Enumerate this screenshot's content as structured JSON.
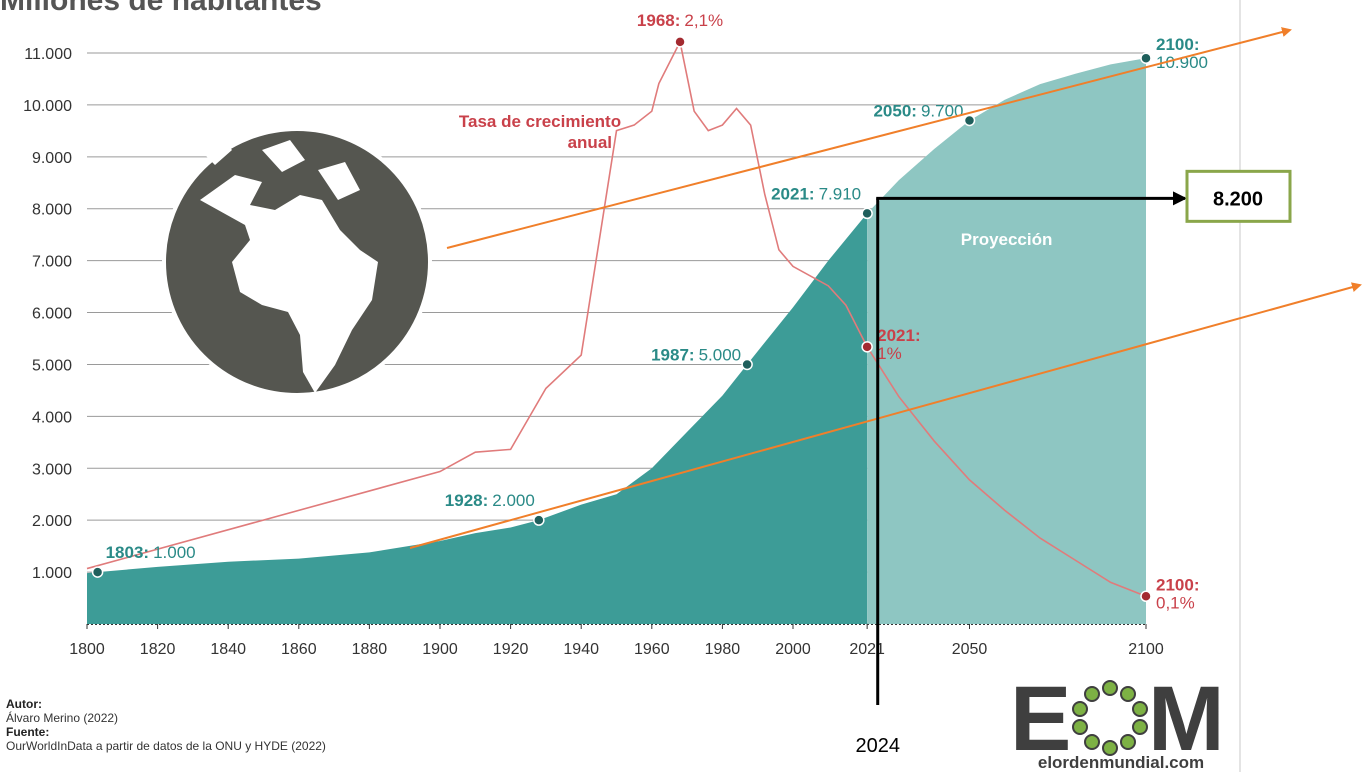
{
  "chart_data": {
    "type": "area",
    "title": "Millones de habitantes",
    "xlim": [
      1800,
      2100
    ],
    "xticks": [
      1800,
      1820,
      1840,
      1860,
      1880,
      1900,
      1920,
      1940,
      1960,
      1980,
      2000,
      2021,
      2050,
      2100
    ],
    "ylim": [
      0,
      11000
    ],
    "yticks": [
      {
        "value": 1000,
        "label": "1.000"
      },
      {
        "value": 2000,
        "label": "2.000"
      },
      {
        "value": 3000,
        "label": "3.000"
      },
      {
        "value": 4000,
        "label": "4.000"
      },
      {
        "value": 5000,
        "label": "5.000"
      },
      {
        "value": 6000,
        "label": "6.000"
      },
      {
        "value": 7000,
        "label": "7.000"
      },
      {
        "value": 8000,
        "label": "8.000"
      },
      {
        "value": 9000,
        "label": "9.000"
      },
      {
        "value": 10000,
        "label": "10.000"
      },
      {
        "value": 11000,
        "label": "11.000"
      }
    ],
    "y2lim": [
      0,
      2.06
    ],
    "grid": true,
    "series": [
      {
        "type": "area",
        "color": "#3d9c97",
        "x": [
          1800,
          1803,
          1820,
          1840,
          1860,
          1880,
          1900,
          1910,
          1920,
          1928,
          1940,
          1950,
          1960,
          1970,
          1980,
          1987,
          2000,
          2010,
          2021
        ],
        "values": [
          980,
          1000,
          1100,
          1200,
          1260,
          1380,
          1600,
          1750,
          1860,
          2000,
          2300,
          2500,
          3000,
          3700,
          4400,
          5000,
          6100,
          7000,
          7910
        ],
        "label_color": "#2a8a87",
        "highlights": [
          {
            "x": 1803,
            "y": 1000,
            "year": "1803:",
            "label": "1.000"
          },
          {
            "x": 1928,
            "y": 2000,
            "year": "1928:",
            "label": "2.000"
          },
          {
            "x": 1987,
            "y": 5000,
            "year": "1987:",
            "label": "5.000"
          },
          {
            "x": 2021,
            "y": 7910,
            "year": "2021:",
            "label": "7.910"
          }
        ]
      },
      {
        "type": "area",
        "name": "Proyección",
        "color": "#8ec6c2",
        "x": [
          2021,
          2030,
          2040,
          2050,
          2060,
          2070,
          2080,
          2090,
          2100
        ],
        "values": [
          7910,
          8550,
          9150,
          9700,
          10100,
          10400,
          10600,
          10780,
          10900
        ],
        "label_color": "#2a8a87",
        "highlights": [
          {
            "x": 2050,
            "y": 9700,
            "year": "2050:",
            "label": "9.700"
          },
          {
            "x": 2100,
            "y": 10900,
            "year": "2100:",
            "label": "10.900"
          }
        ]
      },
      {
        "type": "line",
        "name": "Tasa de crecimiento anual",
        "axis": "y2",
        "color": "#e07b7b",
        "x": [
          1800,
          1900,
          1910,
          1920,
          1930,
          1940,
          1950,
          1955,
          1960,
          1962,
          1968,
          1972,
          1976,
          1980,
          1984,
          1988,
          1992,
          1996,
          2000,
          2010,
          2015,
          2021,
          2030,
          2040,
          2050,
          2060,
          2070,
          2080,
          2090,
          2100
        ],
        "values": [
          0.2,
          0.55,
          0.62,
          0.63,
          0.85,
          0.97,
          1.78,
          1.8,
          1.85,
          1.95,
          2.1,
          1.85,
          1.78,
          1.8,
          1.86,
          1.8,
          1.55,
          1.35,
          1.29,
          1.22,
          1.15,
          1.0,
          0.82,
          0.66,
          0.52,
          0.41,
          0.31,
          0.23,
          0.15,
          0.1
        ],
        "label_color": "#c9414a",
        "highlights": [
          {
            "x": 1968,
            "y": 2.1,
            "year": "1968:",
            "label": "2,1%"
          },
          {
            "x": 2021,
            "y": 1,
            "year": "2021:",
            "label": "1%"
          },
          {
            "x": 2100,
            "y": 0.1,
            "year": "2100:",
            "label": "0,1%"
          }
        ]
      }
    ],
    "annotations": [
      {
        "text": "Tasa de crecimiento",
        "text2": "anual"
      }
    ],
    "marker": {
      "x": 2024,
      "y": 8200,
      "label": "8.200",
      "x_label": "2024"
    }
  },
  "credits": {
    "author_title": "Autor:",
    "author": "Álvaro Merino (2022)",
    "source_title": "Fuente:",
    "source": "OurWorldInData a partir de datos de la ONU y HYDE (2022)"
  },
  "logo": {
    "left": "E",
    "right": "M",
    "url": "elordenmundial.com"
  }
}
